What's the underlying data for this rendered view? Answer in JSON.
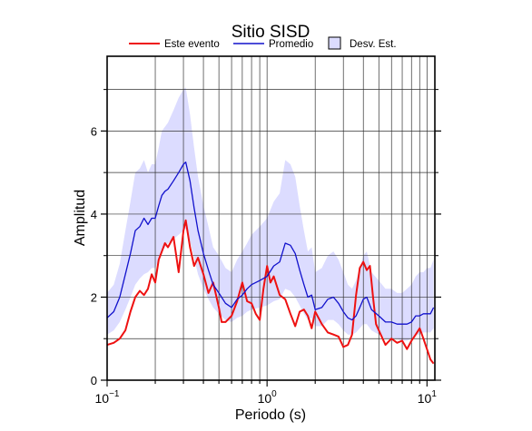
{
  "colors": {
    "event": "#ee1111",
    "mean": "#1111cc",
    "band": "#dcdcff",
    "grid": "#333333"
  },
  "chart_data": {
    "type": "line",
    "title": "Sitio SISD",
    "xlabel": "Periodo (s)",
    "ylabel": "Amplitud",
    "xscale": "log",
    "xlim": [
      0.1,
      11.2
    ],
    "ylim": [
      0,
      7.8
    ],
    "xticks": [
      {
        "value": 0.1,
        "base": "10",
        "exp": "−1"
      },
      {
        "value": 1,
        "base": "10",
        "exp": "0"
      },
      {
        "value": 10,
        "base": "10",
        "exp": "1"
      }
    ],
    "yticks": [
      0,
      2,
      4,
      6
    ],
    "grid": true,
    "legend_position": "top",
    "legend": [
      {
        "label": "Este evento",
        "kind": "line",
        "color": "#ee1111"
      },
      {
        "label": "Promedio",
        "kind": "line",
        "color": "#1111cc"
      },
      {
        "label": "Desv. Est.",
        "kind": "box",
        "color": "#dcdcff"
      }
    ],
    "series": [
      {
        "name": "Este evento",
        "x": [
          0.1,
          0.11,
          0.12,
          0.13,
          0.14,
          0.15,
          0.16,
          0.17,
          0.18,
          0.19,
          0.2,
          0.21,
          0.22,
          0.23,
          0.24,
          0.26,
          0.28,
          0.3,
          0.31,
          0.33,
          0.35,
          0.37,
          0.4,
          0.43,
          0.46,
          0.5,
          0.52,
          0.55,
          0.6,
          0.65,
          0.7,
          0.75,
          0.8,
          0.85,
          0.9,
          0.95,
          1.0,
          1.05,
          1.1,
          1.2,
          1.3,
          1.4,
          1.5,
          1.6,
          1.7,
          1.8,
          1.9,
          2.0,
          2.2,
          2.4,
          2.6,
          2.8,
          3.0,
          3.2,
          3.4,
          3.6,
          3.8,
          4.0,
          4.2,
          4.4,
          4.6,
          4.8,
          5.0,
          5.5,
          6.0,
          6.5,
          7.0,
          7.5,
          8.0,
          8.5,
          9.0,
          9.5,
          10.0,
          10.5,
          11.0
        ],
        "values": [
          0.85,
          0.9,
          1.0,
          1.2,
          1.65,
          2.0,
          2.15,
          2.05,
          2.2,
          2.55,
          2.35,
          2.9,
          3.1,
          3.3,
          3.2,
          3.45,
          2.6,
          3.6,
          3.85,
          3.2,
          2.75,
          2.95,
          2.55,
          2.1,
          2.35,
          1.75,
          1.4,
          1.4,
          1.55,
          1.9,
          2.35,
          1.9,
          1.85,
          1.6,
          1.45,
          2.2,
          2.75,
          2.35,
          2.5,
          2.05,
          1.95,
          1.6,
          1.3,
          1.65,
          1.7,
          1.55,
          1.25,
          1.65,
          1.35,
          1.15,
          1.1,
          1.05,
          0.8,
          0.85,
          1.1,
          2.05,
          2.7,
          2.85,
          2.65,
          2.75,
          2.0,
          1.35,
          1.2,
          0.85,
          1.0,
          0.9,
          0.95,
          0.75,
          0.95,
          1.1,
          1.25,
          1.0,
          0.75,
          0.5,
          0.4
        ]
      },
      {
        "name": "Promedio",
        "x": [
          0.1,
          0.11,
          0.12,
          0.13,
          0.14,
          0.15,
          0.16,
          0.17,
          0.18,
          0.19,
          0.2,
          0.21,
          0.22,
          0.23,
          0.24,
          0.26,
          0.28,
          0.3,
          0.31,
          0.33,
          0.35,
          0.37,
          0.4,
          0.43,
          0.46,
          0.5,
          0.55,
          0.6,
          0.65,
          0.7,
          0.75,
          0.8,
          0.9,
          1.0,
          1.1,
          1.2,
          1.3,
          1.4,
          1.5,
          1.6,
          1.7,
          1.8,
          1.9,
          2.0,
          2.2,
          2.4,
          2.6,
          2.8,
          3.0,
          3.2,
          3.4,
          3.6,
          3.8,
          4.0,
          4.2,
          4.5,
          5.0,
          5.5,
          6.0,
          6.5,
          7.0,
          7.5,
          8.0,
          8.5,
          9.0,
          9.5,
          10.0,
          10.5,
          11.0
        ],
        "values": [
          1.5,
          1.65,
          2.0,
          2.55,
          3.05,
          3.6,
          3.7,
          3.9,
          3.75,
          3.9,
          3.9,
          4.2,
          4.45,
          4.55,
          4.6,
          4.8,
          5.0,
          5.2,
          5.25,
          4.8,
          4.15,
          3.6,
          3.05,
          2.65,
          2.3,
          2.1,
          1.85,
          1.75,
          1.95,
          2.05,
          2.2,
          2.3,
          2.4,
          2.5,
          2.75,
          2.85,
          3.3,
          3.25,
          3.05,
          2.65,
          2.3,
          2.0,
          2.05,
          1.7,
          1.75,
          1.95,
          2.0,
          1.85,
          1.65,
          1.5,
          1.45,
          1.55,
          1.75,
          1.95,
          2.0,
          1.7,
          1.55,
          1.4,
          1.4,
          1.35,
          1.35,
          1.35,
          1.4,
          1.55,
          1.55,
          1.6,
          1.6,
          1.6,
          1.75
        ]
      },
      {
        "name": "Desv. Est.",
        "x": [
          0.1,
          0.11,
          0.12,
          0.13,
          0.14,
          0.15,
          0.16,
          0.17,
          0.18,
          0.19,
          0.2,
          0.21,
          0.22,
          0.23,
          0.24,
          0.26,
          0.28,
          0.3,
          0.31,
          0.33,
          0.35,
          0.37,
          0.4,
          0.43,
          0.46,
          0.5,
          0.55,
          0.6,
          0.65,
          0.7,
          0.75,
          0.8,
          0.9,
          1.0,
          1.1,
          1.2,
          1.3,
          1.4,
          1.5,
          1.6,
          1.7,
          1.8,
          1.9,
          2.0,
          2.2,
          2.4,
          2.6,
          2.8,
          3.0,
          3.2,
          3.4,
          3.6,
          3.8,
          4.0,
          4.2,
          4.5,
          5.0,
          5.5,
          6.0,
          6.5,
          7.0,
          7.5,
          8.0,
          8.5,
          9.0,
          9.5,
          10.0,
          10.5,
          11.0
        ],
        "lower": [
          1.1,
          1.2,
          1.4,
          1.7,
          2.0,
          2.3,
          2.45,
          2.55,
          2.6,
          2.7,
          2.7,
          2.9,
          3.1,
          3.2,
          3.3,
          3.4,
          3.5,
          3.6,
          3.65,
          3.35,
          2.95,
          2.55,
          2.2,
          1.95,
          1.75,
          1.6,
          1.45,
          1.4,
          1.5,
          1.55,
          1.65,
          1.7,
          1.75,
          1.8,
          1.9,
          1.95,
          2.2,
          2.15,
          2.0,
          1.8,
          1.6,
          1.45,
          1.5,
          1.3,
          1.3,
          1.45,
          1.45,
          1.35,
          1.2,
          1.1,
          1.1,
          1.15,
          1.25,
          1.35,
          1.35,
          1.2,
          1.1,
          1.0,
          1.0,
          1.0,
          0.95,
          0.95,
          1.0,
          1.1,
          1.1,
          1.15,
          1.15,
          1.15,
          1.25
        ],
        "upper": [
          2.1,
          2.3,
          2.8,
          3.6,
          4.3,
          5.0,
          5.1,
          5.3,
          5.0,
          5.2,
          5.2,
          5.6,
          6.0,
          6.1,
          6.2,
          6.5,
          6.8,
          7.0,
          7.05,
          6.4,
          5.6,
          4.9,
          4.2,
          3.7,
          3.2,
          3.0,
          2.7,
          2.6,
          2.9,
          3.1,
          3.3,
          3.5,
          3.7,
          3.9,
          4.3,
          4.5,
          5.3,
          5.2,
          4.9,
          4.2,
          3.6,
          3.1,
          3.2,
          2.6,
          2.7,
          3.0,
          3.1,
          2.9,
          2.6,
          2.3,
          2.2,
          2.4,
          2.7,
          3.0,
          3.1,
          2.6,
          2.4,
          2.2,
          2.2,
          2.1,
          2.1,
          2.2,
          2.3,
          2.5,
          2.6,
          2.6,
          2.7,
          2.7,
          2.9
        ]
      }
    ]
  }
}
